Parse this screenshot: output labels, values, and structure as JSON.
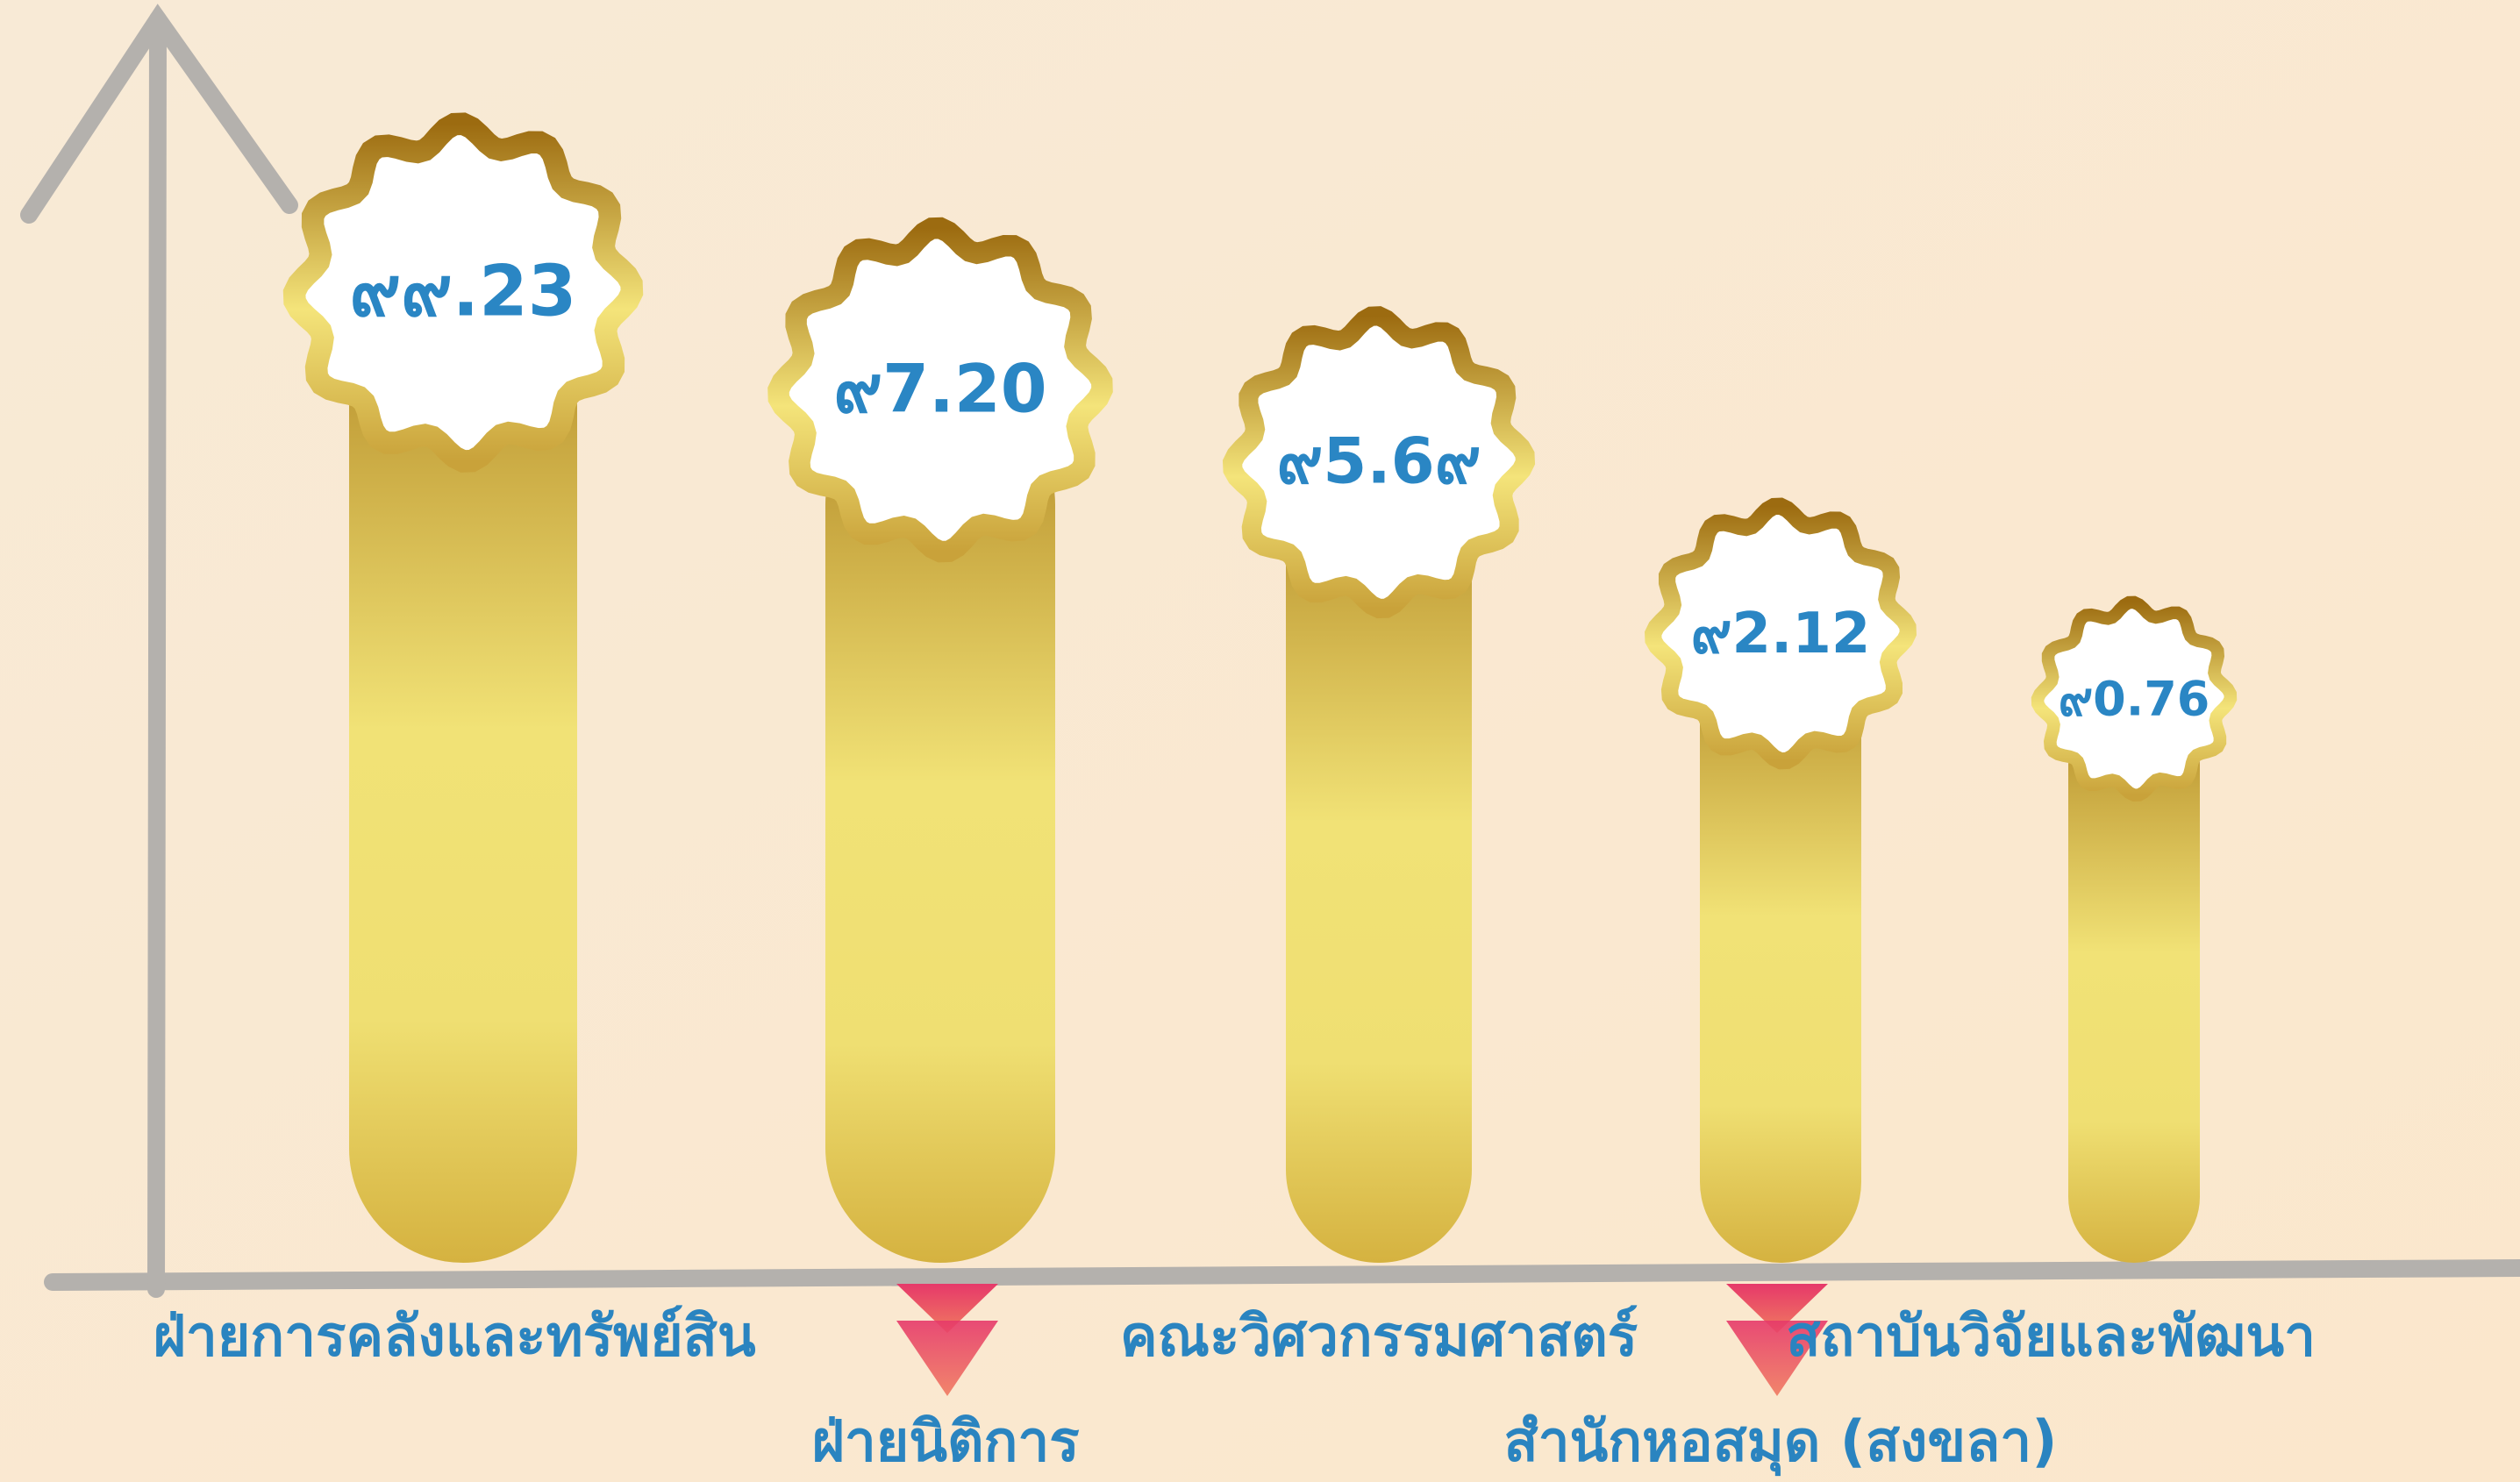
{
  "chart_data": {
    "type": "bar",
    "categories": [
      "ฝ่ายการคลังและทรัพย์สิน",
      "ฝ่ายนิติการ",
      "คณะวิศวกรรมศาสตร์",
      "สำนักหอสมุด (สงขลา)",
      "สถาบันวิจัยและพัฒนา"
    ],
    "values": [
      99.23,
      97.2,
      95.69,
      92.12,
      90.76
    ],
    "value_labels": [
      "๙๙.23",
      "๙7.20",
      "๙5.6๙",
      "๙2.12",
      "๙0.76"
    ],
    "ylim": [
      79,
      105
    ],
    "color": "#e9d466"
  }
}
